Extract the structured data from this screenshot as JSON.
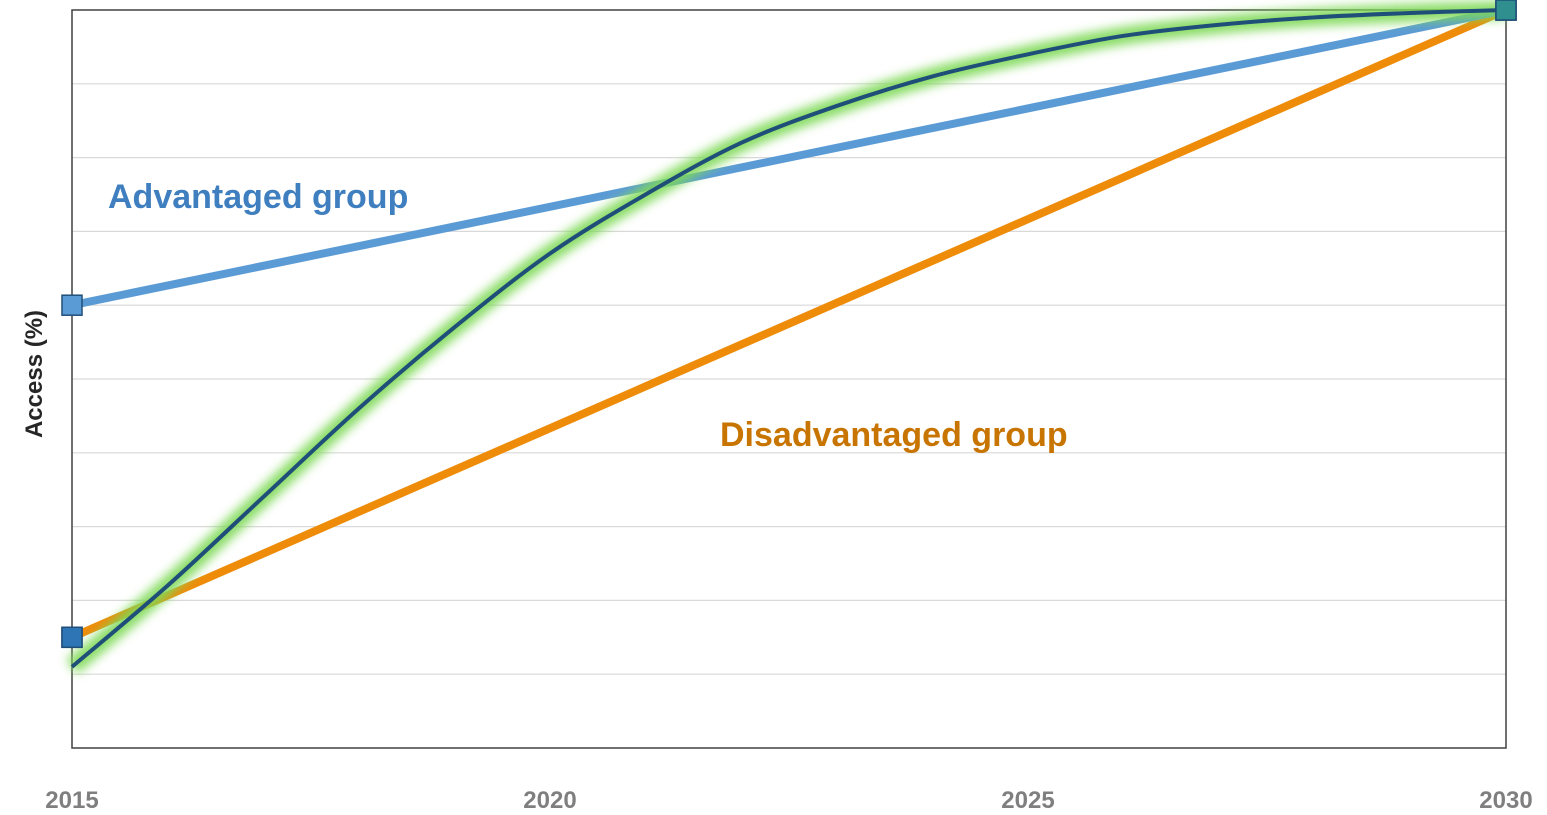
{
  "chart_data": {
    "type": "line",
    "title": "",
    "xlabel": "",
    "ylabel": "Access (%)",
    "x_ticks": [
      "2015",
      "2020",
      "2025",
      "2030"
    ],
    "xlim": [
      2015,
      2030
    ],
    "ylim": [
      0,
      100
    ],
    "grid": "horizontal",
    "legend": "none",
    "series": [
      {
        "name": "Advantaged group",
        "color": "#5b9bd5",
        "label_color": "#3f7fbf",
        "marker": "square",
        "points": [
          [
            2015,
            60
          ],
          [
            2030,
            100
          ]
        ]
      },
      {
        "name": "Disadvantaged group",
        "color": "#ee8c0a",
        "label_color": "#c77400",
        "marker": "square",
        "points": [
          [
            2015,
            15
          ],
          [
            2030,
            100
          ]
        ]
      },
      {
        "color": "#1f4e79",
        "glow_color": "#7ed957",
        "marker": "none",
        "curve": true,
        "points": [
          [
            2015,
            11
          ],
          [
            2016,
            22
          ],
          [
            2017,
            34
          ],
          [
            2018,
            46
          ],
          [
            2019,
            57
          ],
          [
            2020,
            67
          ],
          [
            2021,
            75
          ],
          [
            2022,
            82
          ],
          [
            2023,
            87
          ],
          [
            2024,
            91
          ],
          [
            2025,
            94
          ],
          [
            2026,
            96.5
          ],
          [
            2027,
            98
          ],
          [
            2028,
            99
          ],
          [
            2029,
            99.6
          ],
          [
            2030,
            100
          ]
        ]
      }
    ]
  }
}
